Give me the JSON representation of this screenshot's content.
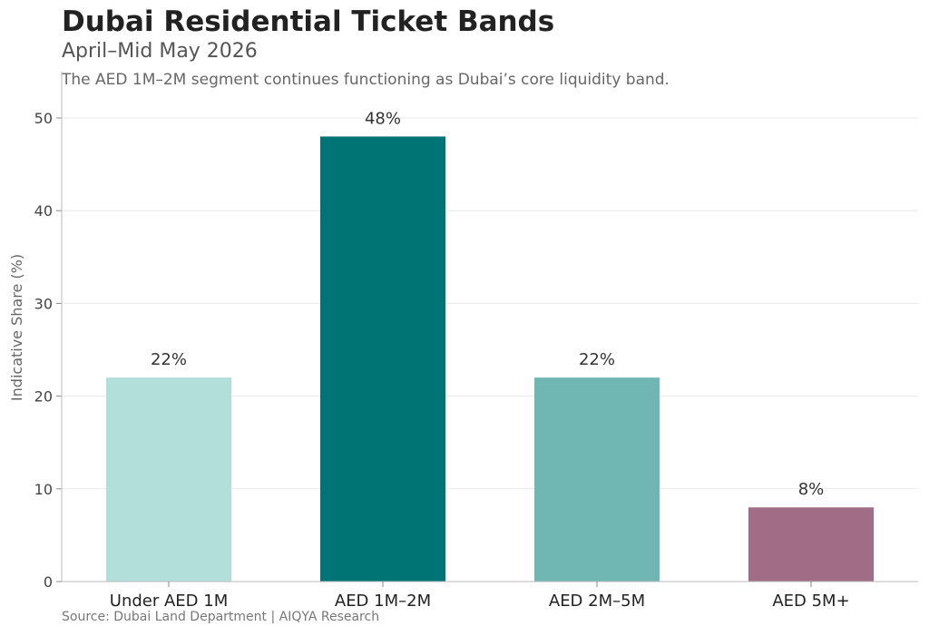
{
  "header": {
    "title": "Dubai Residential Ticket Bands",
    "subtitle": "April–Mid May 2026",
    "note": "The AED 1M–2M segment continues functioning as Dubai’s core liquidity band."
  },
  "footer": {
    "source": "Source: Dubai Land Department | AIQYA Research"
  },
  "chart_data": {
    "type": "bar",
    "categories": [
      "Under AED 1M",
      "AED 1M–2M",
      "AED 2M–5M",
      "AED 5M+"
    ],
    "values": [
      22,
      48,
      22,
      8
    ],
    "data_labels": [
      "22%",
      "48%",
      "22%",
      "8%"
    ],
    "colors": [
      "#b3dfdb",
      "#007474",
      "#70b7b3",
      "#a06c86"
    ],
    "ylabel": "Indicative Share (%)",
    "xlabel": "",
    "ylim": [
      0,
      55
    ],
    "yticks": [
      0,
      10,
      20,
      30,
      40,
      50
    ],
    "grid": true,
    "legend": "none"
  }
}
